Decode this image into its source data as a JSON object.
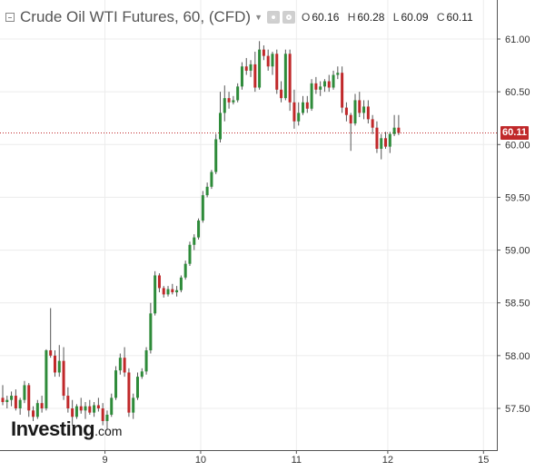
{
  "header": {
    "title": "Crude Oil WTI Futures, 60, (CFD)",
    "ohlc": [
      {
        "key": "O",
        "value": "60.16"
      },
      {
        "key": "H",
        "value": "60.28"
      },
      {
        "key": "L",
        "value": "60.09"
      },
      {
        "key": "C",
        "value": "60.11"
      }
    ]
  },
  "watermark": {
    "brand": "Investing",
    "tld": ".com"
  },
  "colors": {
    "up": "#2e8b3a",
    "down": "#c0282a",
    "wick": "#555555",
    "grid": "#ececec",
    "priceLine": "#c0282a"
  },
  "chart_data": {
    "type": "candlestick",
    "title": "Crude Oil WTI Futures, 60, (CFD)",
    "y_ticks": [
      "61.00",
      "60.50",
      "60.00",
      "59.50",
      "59.00",
      "58.50",
      "58.00",
      "57.50"
    ],
    "ylim": [
      57.2,
      61.3
    ],
    "x_ticks": [
      {
        "label": "9",
        "index": 23.5
      },
      {
        "label": "10",
        "index": 45.5
      },
      {
        "label": "11",
        "index": 67.5
      },
      {
        "label": "12",
        "index": 88.5
      },
      {
        "label": "15",
        "index": 110.5
      }
    ],
    "last_price": "60.11",
    "last_price_value": 60.11,
    "grid": true,
    "candles": [
      [
        57.6,
        57.72,
        57.53,
        57.56
      ],
      [
        57.56,
        57.62,
        57.5,
        57.58
      ],
      [
        57.58,
        57.66,
        57.52,
        57.62
      ],
      [
        57.62,
        57.68,
        57.48,
        57.5
      ],
      [
        57.5,
        57.6,
        57.44,
        57.58
      ],
      [
        57.58,
        57.76,
        57.55,
        57.72
      ],
      [
        57.72,
        57.74,
        57.42,
        57.48
      ],
      [
        57.48,
        57.52,
        57.38,
        57.42
      ],
      [
        57.42,
        57.58,
        57.4,
        57.55
      ],
      [
        57.55,
        57.62,
        57.46,
        57.5
      ],
      [
        57.5,
        58.06,
        57.48,
        58.05
      ],
      [
        58.05,
        58.45,
        57.98,
        58.0
      ],
      [
        58.0,
        58.05,
        57.8,
        57.84
      ],
      [
        57.84,
        58.1,
        57.8,
        57.95
      ],
      [
        57.95,
        58.08,
        57.58,
        57.62
      ],
      [
        57.62,
        57.7,
        57.46,
        57.5
      ],
      [
        57.5,
        57.58,
        57.34,
        57.42
      ],
      [
        57.42,
        57.54,
        57.4,
        57.52
      ],
      [
        57.52,
        57.6,
        57.45,
        57.48
      ],
      [
        57.48,
        57.56,
        57.4,
        57.52
      ],
      [
        57.52,
        57.58,
        57.44,
        57.46
      ],
      [
        57.46,
        57.56,
        57.42,
        57.53
      ],
      [
        57.53,
        57.6,
        57.47,
        57.5
      ],
      [
        57.5,
        57.55,
        57.34,
        57.38
      ],
      [
        57.38,
        57.48,
        57.3,
        57.44
      ],
      [
        57.44,
        57.64,
        57.42,
        57.6
      ],
      [
        57.6,
        57.9,
        57.58,
        57.86
      ],
      [
        57.86,
        58.02,
        57.82,
        57.98
      ],
      [
        57.98,
        58.08,
        57.8,
        57.84
      ],
      [
        57.84,
        57.88,
        57.42,
        57.46
      ],
      [
        57.46,
        57.64,
        57.4,
        57.6
      ],
      [
        57.6,
        57.84,
        57.58,
        57.8
      ],
      [
        57.8,
        57.88,
        57.78,
        57.85
      ],
      [
        57.85,
        58.08,
        57.82,
        58.05
      ],
      [
        58.05,
        58.5,
        58.02,
        58.4
      ],
      [
        58.4,
        58.8,
        58.38,
        58.76
      ],
      [
        58.76,
        58.78,
        58.6,
        58.64
      ],
      [
        58.64,
        58.66,
        58.55,
        58.58
      ],
      [
        58.58,
        58.66,
        58.56,
        58.63
      ],
      [
        58.63,
        58.68,
        58.58,
        58.6
      ],
      [
        58.6,
        58.66,
        58.56,
        58.62
      ],
      [
        58.62,
        58.76,
        58.6,
        58.74
      ],
      [
        58.74,
        58.9,
        58.72,
        58.87
      ],
      [
        58.87,
        59.08,
        58.85,
        59.05
      ],
      [
        59.05,
        59.15,
        59.0,
        59.12
      ],
      [
        59.12,
        59.3,
        59.1,
        59.28
      ],
      [
        59.28,
        59.56,
        59.26,
        59.52
      ],
      [
        59.52,
        59.64,
        59.5,
        59.6
      ],
      [
        59.6,
        59.76,
        59.58,
        59.74
      ],
      [
        59.74,
        60.1,
        59.72,
        60.05
      ],
      [
        60.05,
        60.5,
        60.02,
        60.3
      ],
      [
        60.3,
        60.56,
        60.22,
        60.44
      ],
      [
        60.44,
        60.5,
        60.34,
        60.4
      ],
      [
        60.4,
        60.46,
        60.38,
        60.42
      ],
      [
        60.42,
        60.58,
        60.4,
        60.55
      ],
      [
        60.55,
        60.78,
        60.52,
        60.74
      ],
      [
        60.74,
        60.82,
        60.66,
        60.7
      ],
      [
        60.7,
        60.8,
        60.64,
        60.76
      ],
      [
        60.76,
        60.88,
        60.5,
        60.54
      ],
      [
        60.54,
        60.98,
        60.52,
        60.9
      ],
      [
        60.9,
        60.94,
        60.8,
        60.84
      ],
      [
        60.84,
        60.9,
        60.7,
        60.74
      ],
      [
        60.74,
        60.88,
        60.66,
        60.86
      ],
      [
        60.86,
        60.9,
        60.48,
        60.52
      ],
      [
        60.52,
        60.6,
        60.4,
        60.44
      ],
      [
        60.44,
        60.9,
        60.42,
        60.86
      ],
      [
        60.86,
        60.9,
        60.32,
        60.4
      ],
      [
        60.4,
        60.52,
        60.15,
        60.22
      ],
      [
        60.22,
        60.4,
        60.18,
        60.3
      ],
      [
        60.3,
        60.46,
        60.28,
        60.4
      ],
      [
        60.4,
        60.46,
        60.3,
        60.34
      ],
      [
        60.34,
        60.62,
        60.32,
        60.58
      ],
      [
        60.58,
        60.64,
        60.48,
        60.52
      ],
      [
        60.52,
        60.6,
        60.46,
        60.55
      ],
      [
        60.55,
        60.62,
        60.5,
        60.6
      ],
      [
        60.6,
        60.66,
        60.5,
        60.54
      ],
      [
        60.54,
        60.7,
        60.52,
        60.66
      ],
      [
        60.66,
        60.74,
        60.62,
        60.68
      ],
      [
        60.68,
        60.74,
        60.3,
        60.35
      ],
      [
        60.35,
        60.4,
        60.22,
        60.28
      ],
      [
        60.28,
        60.3,
        59.94,
        60.2
      ],
      [
        60.2,
        60.48,
        60.18,
        60.42
      ],
      [
        60.42,
        60.5,
        60.26,
        60.3
      ],
      [
        60.3,
        60.42,
        60.24,
        60.36
      ],
      [
        60.36,
        60.42,
        60.2,
        60.24
      ],
      [
        60.24,
        60.28,
        60.1,
        60.16
      ],
      [
        60.16,
        60.22,
        59.92,
        59.96
      ],
      [
        59.96,
        60.1,
        59.86,
        60.06
      ],
      [
        60.06,
        60.12,
        59.96,
        59.98
      ],
      [
        59.98,
        60.12,
        59.92,
        60.1
      ],
      [
        60.1,
        60.28,
        60.08,
        60.16
      ],
      [
        60.16,
        60.28,
        60.09,
        60.11
      ]
    ]
  }
}
